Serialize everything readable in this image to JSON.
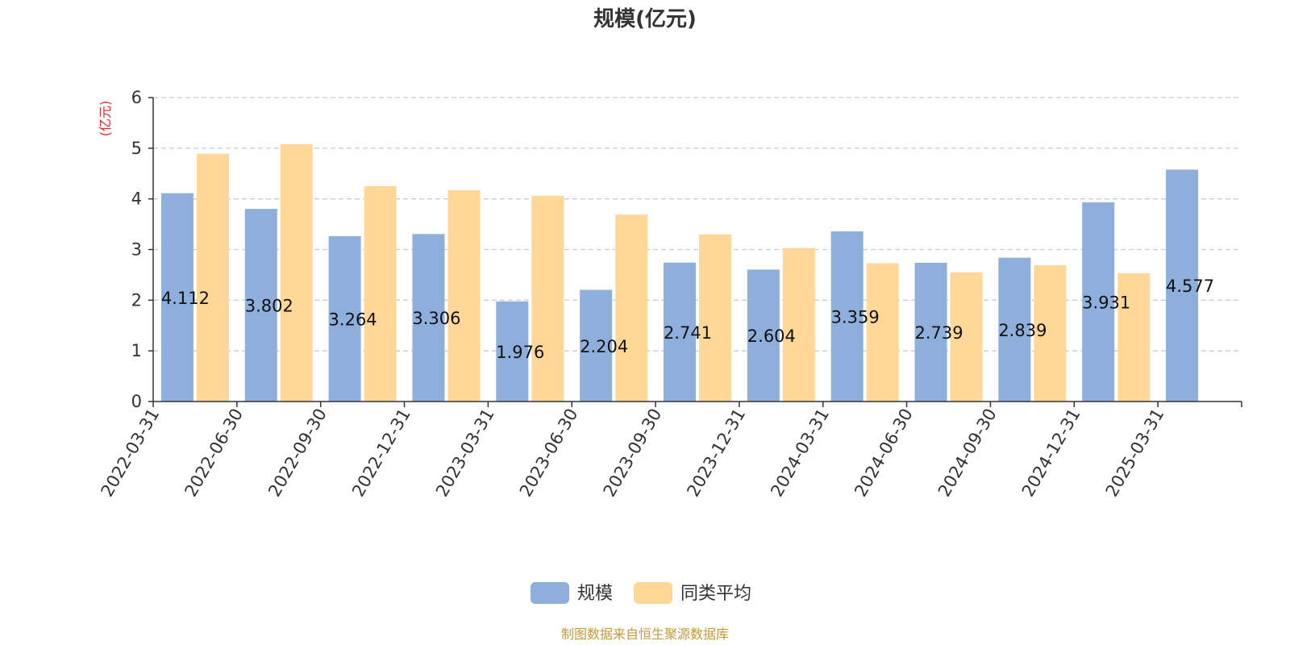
{
  "chart_data": {
    "type": "bar",
    "title": "规模(亿元)",
    "ylabel": "(亿元)",
    "ylim": [
      0,
      6
    ],
    "yticks": [
      0,
      1,
      2,
      3,
      4,
      5,
      6
    ],
    "grid": true,
    "legend_position": "bottom-center",
    "categories": [
      "2022-03-31",
      "2022-06-30",
      "2022-09-30",
      "2022-12-31",
      "2023-03-31",
      "2023-06-30",
      "2023-09-30",
      "2023-12-31",
      "2024-03-31",
      "2024-06-30",
      "2024-09-30",
      "2024-12-31",
      "2025-03-31"
    ],
    "series": [
      {
        "name": "规模",
        "color": "#8eaedc",
        "values": [
          4.112,
          3.802,
          3.264,
          3.306,
          1.976,
          2.204,
          2.741,
          2.604,
          3.359,
          2.739,
          2.839,
          3.931,
          4.577
        ],
        "labels": [
          "4.112",
          "3.802",
          "3.264",
          "3.306",
          "1.976",
          "2.204",
          "2.741",
          "2.604",
          "3.359",
          "2.739",
          "2.839",
          "3.931",
          "4.577"
        ]
      },
      {
        "name": "同类平均",
        "color": "#ffd898",
        "values": [
          4.89,
          5.08,
          4.25,
          4.17,
          4.06,
          3.69,
          3.3,
          3.03,
          2.73,
          2.55,
          2.69,
          2.53,
          null
        ]
      }
    ],
    "source_note": "制图数据来自恒生聚源数据库"
  },
  "colors": {
    "title": "#333333",
    "ylabel": "#e8262d",
    "axis": "#333333",
    "grid": "#cccccc",
    "source": "#c49a3b"
  }
}
